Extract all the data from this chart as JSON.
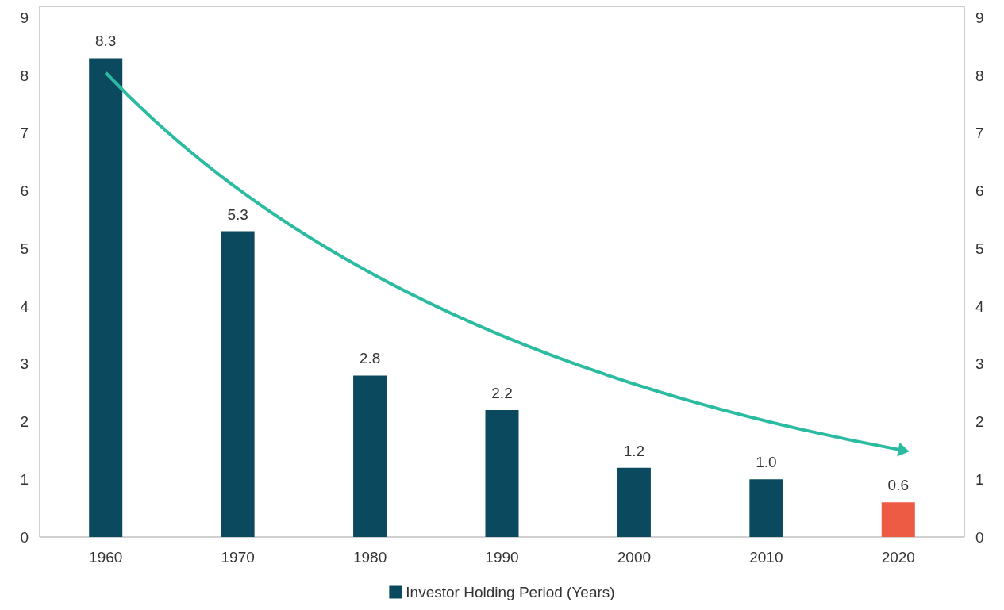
{
  "chart_data": {
    "type": "bar",
    "categories": [
      "1960",
      "1970",
      "1980",
      "1990",
      "2000",
      "2010",
      "2020"
    ],
    "series": [
      {
        "name": "Investor Holding Period (Years)",
        "color": "#0b4a5e",
        "colors": [
          "#0b4a5e",
          "#0b4a5e",
          "#0b4a5e",
          "#0b4a5e",
          "#0b4a5e",
          "#0b4a5e",
          "#ee5b45"
        ],
        "values": [
          8.3,
          5.3,
          2.8,
          2.2,
          1.2,
          1.0,
          0.6
        ],
        "value_labels": [
          "8.3",
          "5.3",
          "2.8",
          "2.2",
          "1.2",
          "1.0",
          "0.6"
        ]
      }
    ],
    "ylim": [
      0,
      9.2
    ],
    "yticks": [
      0,
      1,
      2,
      3,
      4,
      5,
      6,
      7,
      8,
      9
    ],
    "y2lim": [
      0,
      9.2
    ],
    "y2ticks": [
      0,
      1,
      2,
      3,
      4,
      5,
      6,
      7,
      8,
      9
    ],
    "legend": "bottom",
    "grid": false
  }
}
